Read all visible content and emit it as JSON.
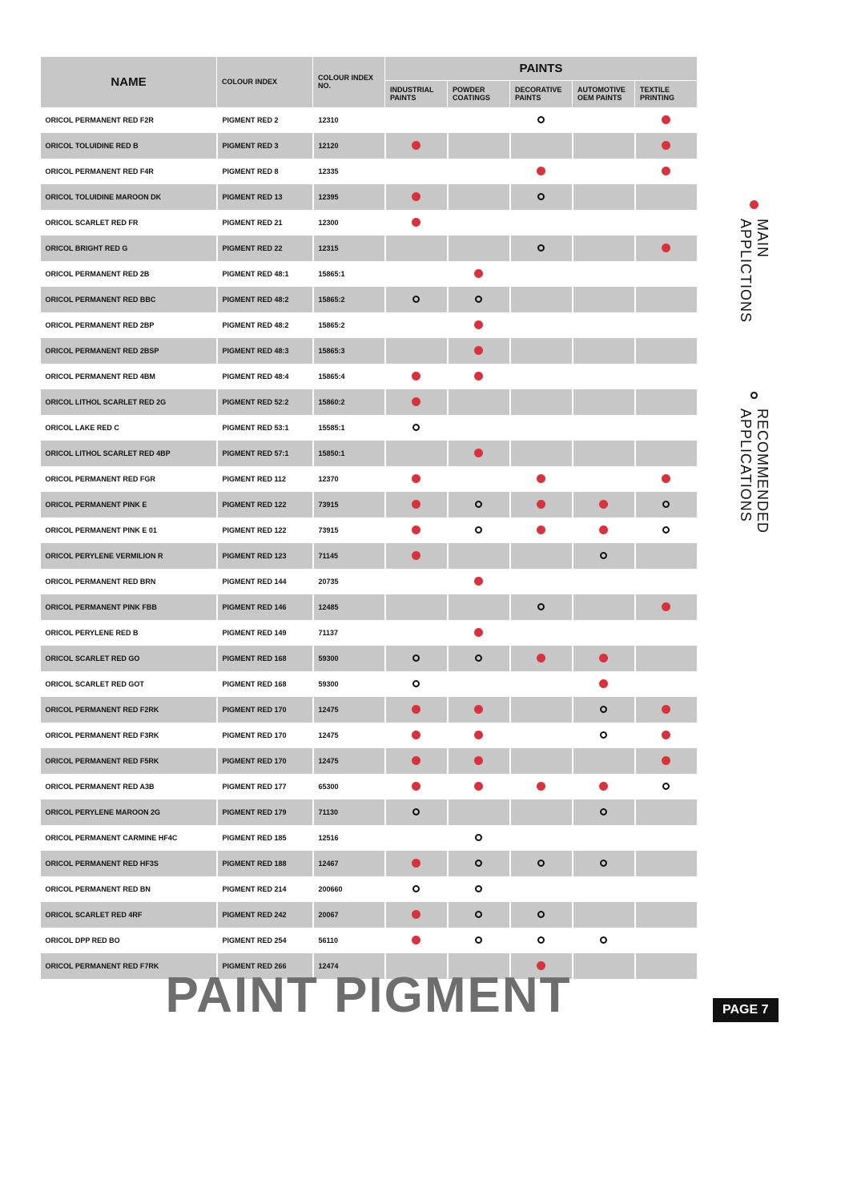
{
  "colors": {
    "header_bg": "#c7c7c7",
    "row_alt_bg": "#c7c7c7",
    "row_bg": "#ffffff",
    "dot_red": "#d4343f",
    "footer_text": "#6e6e6e",
    "page_num_bg": "#111111",
    "page_num_text": "#ffffff"
  },
  "header": {
    "paints_section": "PAINTS",
    "name": "NAME",
    "colour_index": "COLOUR INDEX",
    "colour_index_no": "COLOUR INDEX NO.",
    "apps": [
      "INDUSTRIAL PAINTS",
      "POWDER COATINGS",
      "DECORATIVE PAINTS",
      "AUTOMOTIVE OEM PAINTS",
      "TEXTILE PRINTING"
    ]
  },
  "legend": {
    "main": "MAIN APPLICTIONS",
    "rec": "RECOMMENDED APPLICATIONS"
  },
  "footer": {
    "title": "PAINT PIGMENT",
    "page": "PAGE 7"
  },
  "rows": [
    {
      "name": "ORICOL PERMANENT RED F2R",
      "ci": "PIGMENT RED 2",
      "cino": "12310",
      "apps": [
        "",
        "",
        "open",
        "",
        "solid"
      ]
    },
    {
      "name": "ORICOL TOLUIDINE RED B",
      "ci": "PIGMENT RED 3",
      "cino": "12120",
      "apps": [
        "solid",
        "",
        "",
        "",
        "solid"
      ]
    },
    {
      "name": "ORICOL PERMANENT RED F4R",
      "ci": "PIGMENT RED 8",
      "cino": "12335",
      "apps": [
        "",
        "",
        "solid",
        "",
        "solid"
      ]
    },
    {
      "name": "ORICOL TOLUIDINE MAROON DK",
      "ci": "PIGMENT RED 13",
      "cino": "12395",
      "apps": [
        "solid",
        "",
        "open",
        "",
        ""
      ]
    },
    {
      "name": "ORICOL SCARLET RED FR",
      "ci": "PIGMENT RED 21",
      "cino": "12300",
      "apps": [
        "solid",
        "",
        "",
        "",
        ""
      ]
    },
    {
      "name": "ORICOL BRIGHT RED G",
      "ci": "PIGMENT RED 22",
      "cino": "12315",
      "apps": [
        "",
        "",
        "open",
        "",
        "solid"
      ]
    },
    {
      "name": "ORICOL PERMANENT RED 2B",
      "ci": "PIGMENT RED 48:1",
      "cino": "15865:1",
      "apps": [
        "",
        "solid",
        "",
        "",
        ""
      ]
    },
    {
      "name": "ORICOL PERMANENT RED BBC",
      "ci": "PIGMENT RED 48:2",
      "cino": "15865:2",
      "apps": [
        "open",
        "open",
        "",
        "",
        ""
      ]
    },
    {
      "name": "ORICOL PERMANENT RED 2BP",
      "ci": "PIGMENT RED 48:2",
      "cino": "15865:2",
      "apps": [
        "",
        "solid",
        "",
        "",
        ""
      ]
    },
    {
      "name": "ORICOL PERMANENT RED 2BSP",
      "ci": "PIGMENT RED 48:3",
      "cino": "15865:3",
      "apps": [
        "",
        "solid",
        "",
        "",
        ""
      ]
    },
    {
      "name": "ORICOL PERMANENT RED 4BM",
      "ci": "PIGMENT RED 48:4",
      "cino": "15865:4",
      "apps": [
        "solid",
        "solid",
        "",
        "",
        ""
      ]
    },
    {
      "name": "ORICOL LITHOL SCARLET RED 2G",
      "ci": "PIGMENT RED 52:2",
      "cino": "15860:2",
      "apps": [
        "solid",
        "",
        "",
        "",
        ""
      ]
    },
    {
      "name": "ORICOL LAKE RED C",
      "ci": "PIGMENT RED 53:1",
      "cino": "15585:1",
      "apps": [
        "open",
        "",
        "",
        "",
        ""
      ]
    },
    {
      "name": "ORICOL LITHOL SCARLET RED 4BP",
      "ci": "PIGMENT RED 57:1",
      "cino": "15850:1",
      "apps": [
        "",
        "solid",
        "",
        "",
        ""
      ]
    },
    {
      "name": "ORICOL PERMANENT RED FGR",
      "ci": "PIGMENT RED 112",
      "cino": "12370",
      "apps": [
        "solid",
        "",
        "solid",
        "",
        "solid"
      ]
    },
    {
      "name": "ORICOL PERMANENT PINK E",
      "ci": "PIGMENT RED 122",
      "cino": "73915",
      "apps": [
        "solid",
        "open",
        "solid",
        "solid",
        "open"
      ]
    },
    {
      "name": "ORICOL PERMANENT PINK E 01",
      "ci": "PIGMENT RED 122",
      "cino": "73915",
      "apps": [
        "solid",
        "open",
        "solid",
        "solid",
        "open"
      ]
    },
    {
      "name": "ORICOL PERYLENE VERMILION R",
      "ci": "PIGMENT RED 123",
      "cino": "71145",
      "apps": [
        "solid",
        "",
        "",
        "open",
        ""
      ]
    },
    {
      "name": "ORICOL PERMANENT RED BRN",
      "ci": "PIGMENT RED 144",
      "cino": "20735",
      "apps": [
        "",
        "solid",
        "",
        "",
        ""
      ]
    },
    {
      "name": "ORICOL PERMANENT PINK FBB",
      "ci": "PIGMENT RED 146",
      "cino": "12485",
      "apps": [
        "",
        "",
        "open",
        "",
        "solid"
      ]
    },
    {
      "name": "ORICOL PERYLENE RED B",
      "ci": "PIGMENT RED 149",
      "cino": "71137",
      "apps": [
        "",
        "solid",
        "",
        "",
        ""
      ]
    },
    {
      "name": "ORICOL SCARLET RED GO",
      "ci": "PIGMENT RED 168",
      "cino": "59300",
      "apps": [
        "open",
        "open",
        "solid",
        "solid",
        ""
      ]
    },
    {
      "name": "ORICOL SCARLET RED GOT",
      "ci": "PIGMENT RED 168",
      "cino": "59300",
      "apps": [
        "open",
        "",
        "",
        "solid",
        ""
      ]
    },
    {
      "name": "ORICOL PERMANENT RED F2RK",
      "ci": "PIGMENT RED 170",
      "cino": "12475",
      "apps": [
        "solid",
        "solid",
        "",
        "open",
        "solid"
      ]
    },
    {
      "name": "ORICOL PERMANENT RED F3RK",
      "ci": "PIGMENT RED 170",
      "cino": "12475",
      "apps": [
        "solid",
        "solid",
        "",
        "open",
        "solid"
      ]
    },
    {
      "name": "ORICOL PERMANENT RED F5RK",
      "ci": "PIGMENT RED 170",
      "cino": "12475",
      "apps": [
        "solid",
        "solid",
        "",
        "",
        "solid"
      ]
    },
    {
      "name": "ORICOL PERMANENT RED A3B",
      "ci": "PIGMENT RED 177",
      "cino": "65300",
      "apps": [
        "solid",
        "solid",
        "solid",
        "solid",
        "open"
      ]
    },
    {
      "name": "ORICOL PERYLENE MAROON 2G",
      "ci": "PIGMENT RED 179",
      "cino": "71130",
      "apps": [
        "open",
        "",
        "",
        "open",
        ""
      ]
    },
    {
      "name": "ORICOL PERMANENT CARMINE HF4C",
      "ci": "PIGMENT RED 185",
      "cino": "12516",
      "apps": [
        "",
        "open",
        "",
        "",
        ""
      ]
    },
    {
      "name": "ORICOL PERMANENT RED HF3S",
      "ci": "PIGMENT RED 188",
      "cino": "12467",
      "apps": [
        "solid",
        "open",
        "open",
        "open",
        ""
      ]
    },
    {
      "name": "ORICOL PERMANENT RED BN",
      "ci": "PIGMENT RED 214",
      "cino": "200660",
      "apps": [
        "open",
        "open",
        "",
        "",
        ""
      ]
    },
    {
      "name": "ORICOL SCARLET RED 4RF",
      "ci": "PIGMENT RED 242",
      "cino": "20067",
      "apps": [
        "solid",
        "open",
        "open",
        "",
        ""
      ]
    },
    {
      "name": "ORICOL DPP RED BO",
      "ci": "PIGMENT RED 254",
      "cino": "56110",
      "apps": [
        "solid",
        "open",
        "open",
        "open",
        ""
      ]
    },
    {
      "name": "ORICOL PERMANENT RED F7RK",
      "ci": "PIGMENT RED 266",
      "cino": "12474",
      "apps": [
        "",
        "",
        "solid",
        "",
        ""
      ]
    }
  ]
}
